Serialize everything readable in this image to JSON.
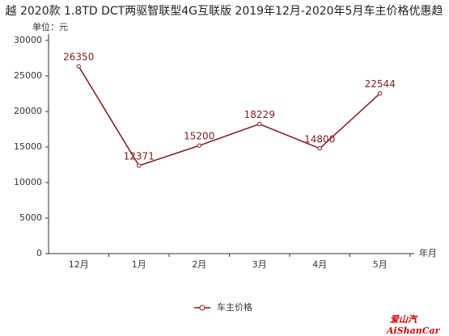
{
  "chart_data": {
    "type": "line",
    "title": "越 2020款 1.8TD DCT两驱智联型4G互联版 2019年12月-2020年5月车主价格优惠趋",
    "y_axis_label": "单位：元",
    "x_axis_label": "年月",
    "categories": [
      "12月",
      "1月",
      "2月",
      "3月",
      "4月",
      "5月"
    ],
    "series": [
      {
        "name": "车主价格",
        "color": "#7b1c1c",
        "values": [
          26350,
          12371,
          15200,
          18229,
          14800,
          22544
        ]
      }
    ],
    "ylim": [
      0,
      30000
    ],
    "yticks": [
      0,
      5000,
      10000,
      15000,
      20000,
      25000,
      30000
    ],
    "grid": false,
    "legend": "bottom",
    "watermark": [
      "爱山汽",
      "AiShanCar"
    ]
  }
}
